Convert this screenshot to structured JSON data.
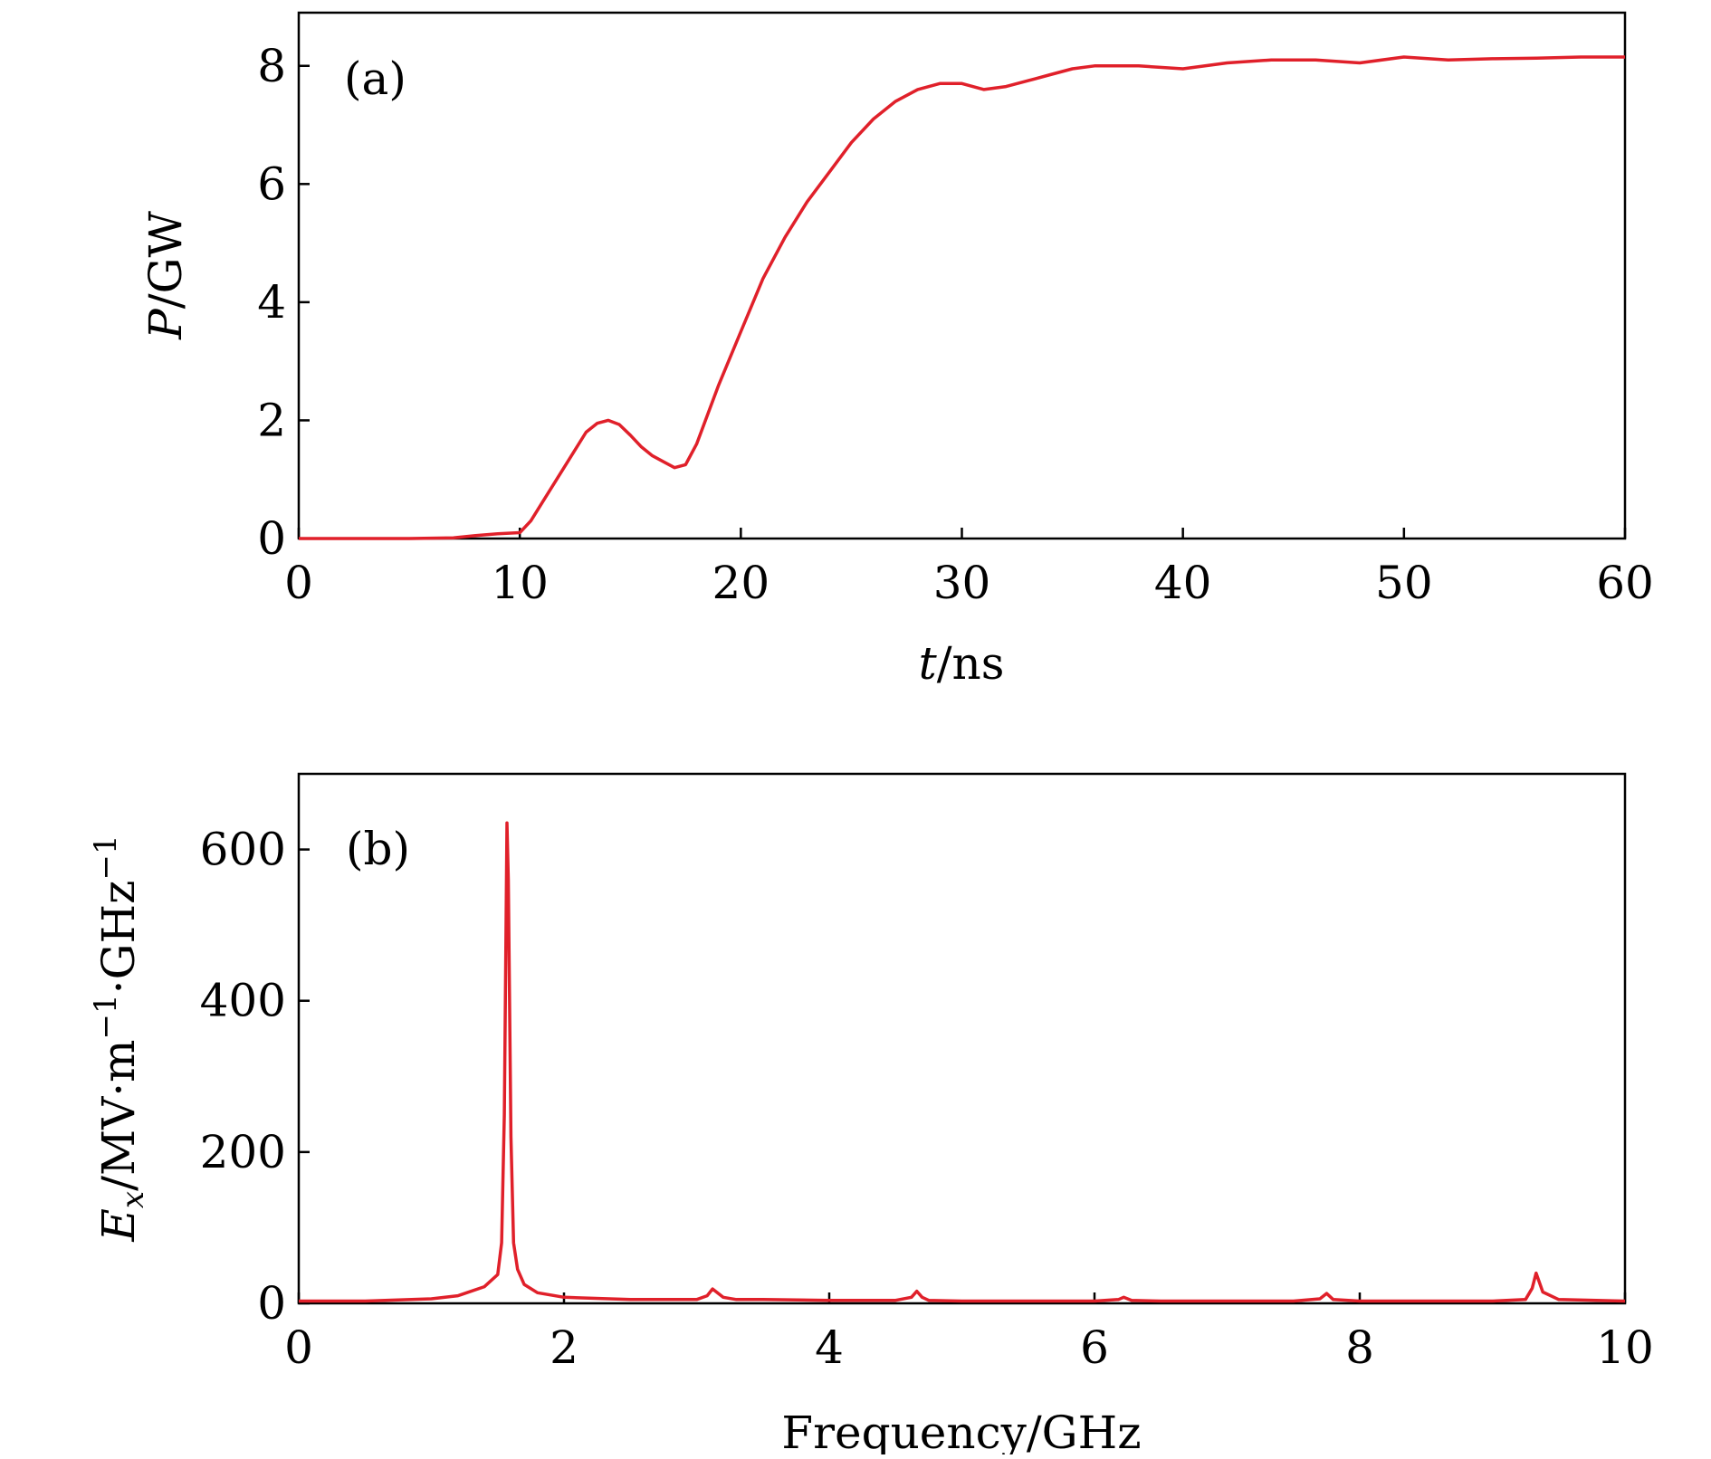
{
  "chart_data": [
    {
      "type": "line",
      "panel_label": "(a)",
      "xlabel": "t/ns",
      "ylabel": "P/GW",
      "xlim": [
        0,
        60
      ],
      "ylim": [
        0,
        8.9
      ],
      "xticks": [
        0,
        10,
        20,
        30,
        40,
        50,
        60
      ],
      "yticks": [
        0,
        2,
        4,
        6,
        8
      ],
      "grid": false,
      "line_color": "#e0202a",
      "series": [
        {
          "x": [
            0,
            5,
            7,
            8,
            9,
            10,
            10.5,
            11,
            12,
            13,
            13.5,
            14,
            14.5,
            15,
            15.5,
            16,
            17,
            17.5,
            18,
            19,
            20,
            21,
            22,
            23,
            24,
            25,
            26,
            27,
            28,
            29,
            30,
            31,
            32,
            33,
            34,
            35,
            36,
            38,
            40,
            42,
            44,
            46,
            48,
            50,
            52,
            54,
            56,
            58,
            60
          ],
          "values": [
            0,
            0,
            0.01,
            0.05,
            0.08,
            0.1,
            0.3,
            0.6,
            1.2,
            1.8,
            1.95,
            2.0,
            1.93,
            1.75,
            1.55,
            1.4,
            1.2,
            1.25,
            1.6,
            2.6,
            3.5,
            4.4,
            5.1,
            5.7,
            6.2,
            6.7,
            7.1,
            7.4,
            7.6,
            7.7,
            7.7,
            7.6,
            7.65,
            7.75,
            7.85,
            7.95,
            8.0,
            8.0,
            7.95,
            8.05,
            8.1,
            8.1,
            8.05,
            8.15,
            8.1,
            8.12,
            8.13,
            8.15,
            8.15
          ]
        }
      ]
    },
    {
      "type": "line",
      "panel_label": "(b)",
      "xlabel": "Frequency/GHz",
      "ylabel": "Ex/MV·m−1·GHz−1",
      "ylabel_parts": {
        "E": "E",
        "sub": "x",
        "main": "/MV·m",
        "sup1": "−1",
        "mid": "·GHz",
        "sup2": "−1"
      },
      "xlim": [
        0,
        10
      ],
      "ylim": [
        0,
        700
      ],
      "xticks": [
        0,
        2,
        4,
        6,
        8,
        10
      ],
      "yticks": [
        0,
        200,
        400,
        600
      ],
      "grid": false,
      "line_color": "#e0202a",
      "series": [
        {
          "x": [
            0,
            0.5,
            1.0,
            1.2,
            1.4,
            1.5,
            1.53,
            1.55,
            1.57,
            1.58,
            1.6,
            1.62,
            1.65,
            1.7,
            1.8,
            2.0,
            2.5,
            3.0,
            3.08,
            3.12,
            3.2,
            3.3,
            3.5,
            4.0,
            4.5,
            4.62,
            4.66,
            4.7,
            4.75,
            5.0,
            5.5,
            6.0,
            6.18,
            6.22,
            6.28,
            6.5,
            7.0,
            7.5,
            7.7,
            7.75,
            7.8,
            8.0,
            8.5,
            9.0,
            9.25,
            9.3,
            9.33,
            9.38,
            9.5,
            10.0
          ],
          "values": [
            3,
            3,
            6,
            10,
            22,
            38,
            80,
            250,
            635,
            560,
            220,
            80,
            45,
            25,
            14,
            8,
            5,
            5,
            10,
            19,
            8,
            5,
            5,
            4,
            4,
            8,
            16,
            8,
            4,
            3,
            3,
            3,
            5,
            8,
            4,
            3,
            3,
            3,
            6,
            13,
            5,
            3,
            3,
            3,
            5,
            20,
            40,
            15,
            5,
            3
          ]
        }
      ]
    }
  ]
}
